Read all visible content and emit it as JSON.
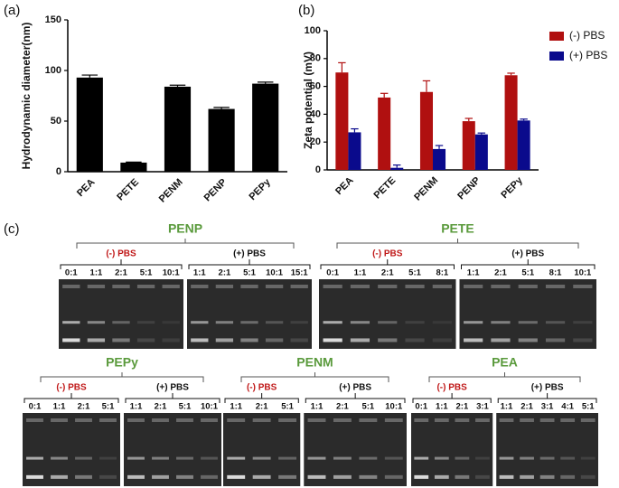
{
  "panel_labels": [
    "(a)",
    "(b)",
    "(c)"
  ],
  "chart_data": [
    {
      "type": "bar",
      "ylabel": "Hydrodynamic diameter(nm)",
      "categories": [
        "PEA",
        "PETE",
        "PENM",
        "PENP",
        "PEPy"
      ],
      "values": [
        93,
        9,
        84,
        62,
        87
      ],
      "errors": [
        2.5,
        0.5,
        1.5,
        1.5,
        1.5
      ],
      "color": "#000000",
      "ylim": [
        0,
        150
      ],
      "yticks": [
        0,
        50,
        100,
        150
      ]
    },
    {
      "type": "bar",
      "ylabel": "Zeta potential (mV)",
      "categories": [
        "PEA",
        "PETE",
        "PENM",
        "PENP",
        "PEPy"
      ],
      "series": [
        {
          "name": "(-) PBS",
          "color": "#b01010",
          "values": [
            70,
            52,
            56,
            35,
            68
          ],
          "errors": [
            7,
            3,
            8,
            2,
            1.5
          ]
        },
        {
          "name": "(+) PBS",
          "color": "#0a0a8c",
          "values": [
            27,
            1.5,
            15,
            25.5,
            35.5
          ],
          "errors": [
            2.5,
            2,
            2.5,
            1,
            1
          ]
        }
      ],
      "ylim": [
        0,
        100
      ],
      "yticks": [
        0,
        20,
        40,
        60,
        80,
        100
      ],
      "legend": "upper right"
    }
  ],
  "gels": [
    {
      "title": "PENP",
      "groups": [
        {
          "label": "(-) PBS",
          "ratios": [
            "0:1",
            "1:1",
            "2:1",
            "5:1",
            "10:1"
          ]
        },
        {
          "label": "(+) PBS",
          "ratios": [
            "1:1",
            "2:1",
            "5:1",
            "10:1",
            "15:1"
          ]
        }
      ]
    },
    {
      "title": "PETE",
      "groups": [
        {
          "label": "(-) PBS",
          "ratios": [
            "0:1",
            "1:1",
            "2:1",
            "5:1",
            "8:1"
          ]
        },
        {
          "label": "(+) PBS",
          "ratios": [
            "1:1",
            "2:1",
            "5:1",
            "8:1",
            "10:1"
          ]
        }
      ]
    },
    {
      "title": "PEPy",
      "groups": [
        {
          "label": "(-) PBS",
          "ratios": [
            "0:1",
            "1:1",
            "2:1",
            "5:1"
          ]
        },
        {
          "label": "(+) PBS",
          "ratios": [
            "1:1",
            "2:1",
            "5:1",
            "10:1"
          ]
        }
      ]
    },
    {
      "title": "PENM",
      "groups": [
        {
          "label": "(-) PBS",
          "ratios": [
            "1:1",
            "2:1",
            "5:1"
          ]
        },
        {
          "label": "(+) PBS",
          "ratios": [
            "1:1",
            "2:1",
            "5:1",
            "10:1"
          ]
        }
      ]
    },
    {
      "title": "PEA",
      "groups": [
        {
          "label": "(-) PBS",
          "ratios": [
            "0:1",
            "1:1",
            "2:1",
            "3:1"
          ]
        },
        {
          "label": "(+) PBS",
          "ratios": [
            "1:1",
            "2:1",
            "3:1",
            "4:1",
            "5:1"
          ]
        }
      ]
    }
  ]
}
